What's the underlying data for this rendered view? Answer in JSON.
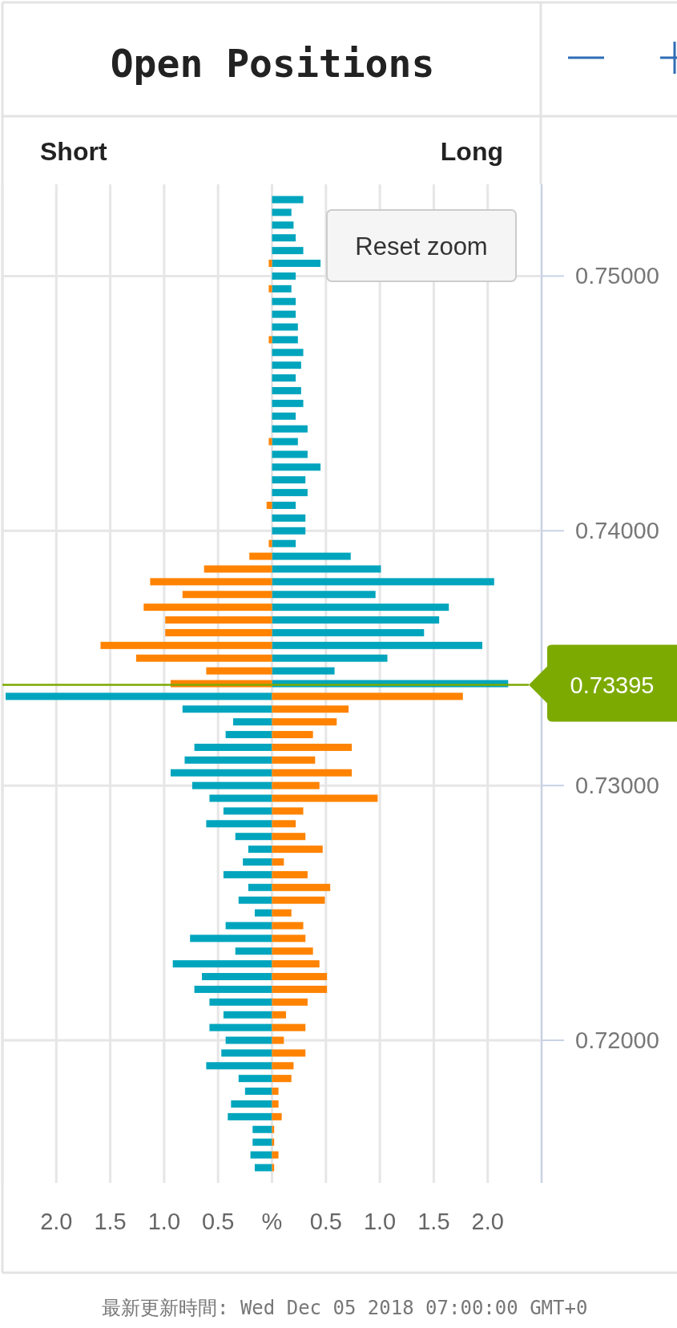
{
  "chart_data": {
    "type": "bar",
    "orientation": "horizontal",
    "stacked": true,
    "title": "Open Positions",
    "x": [
      0.753,
      0.7525,
      0.752,
      0.7515,
      0.751,
      0.7505,
      0.75,
      0.7495,
      0.749,
      0.7485,
      0.748,
      0.7475,
      0.747,
      0.7465,
      0.746,
      0.7455,
      0.745,
      0.7445,
      0.744,
      0.7435,
      0.743,
      0.7425,
      0.742,
      0.7415,
      0.741,
      0.7405,
      0.74,
      0.7395,
      0.739,
      0.7385,
      0.738,
      0.7375,
      0.737,
      0.7365,
      0.736,
      0.7355,
      0.735,
      0.7345,
      0.734,
      0.7335,
      0.733,
      0.7325,
      0.732,
      0.7315,
      0.731,
      0.7305,
      0.73,
      0.7295,
      0.729,
      0.7285,
      0.728,
      0.7275,
      0.727,
      0.7265,
      0.726,
      0.7255,
      0.725,
      0.7245,
      0.724,
      0.7235,
      0.723,
      0.7225,
      0.722,
      0.7215,
      0.721,
      0.7205,
      0.72,
      0.7195,
      0.719,
      0.7185,
      0.718,
      0.7175,
      0.717,
      0.7165,
      0.716,
      0.7155,
      0.715
    ],
    "series": [
      {
        "color": "#00a5bd",
        "values": [
          0.29,
          0.18,
          0.2,
          0.22,
          0.29,
          0.45,
          0.22,
          0.18,
          0.22,
          0.22,
          0.24,
          0.24,
          0.29,
          0.27,
          0.22,
          0.27,
          0.29,
          0.22,
          0.33,
          0.24,
          0.33,
          0.45,
          0.31,
          0.33,
          0.22,
          0.31,
          0.31,
          0.22,
          0.73,
          1.01,
          2.06,
          0.96,
          1.64,
          1.55,
          1.41,
          1.95,
          1.07,
          0.58,
          2.19,
          -2.47,
          -0.83,
          -0.36,
          -0.43,
          -0.72,
          -0.81,
          -0.94,
          -0.74,
          -0.58,
          -0.45,
          -0.61,
          -0.34,
          -0.22,
          -0.27,
          -0.45,
          -0.22,
          -0.31,
          -0.16,
          -0.43,
          -0.76,
          -0.34,
          -0.92,
          -0.65,
          -0.72,
          -0.58,
          -0.45,
          -0.58,
          -0.43,
          -0.47,
          -0.61,
          -0.31,
          -0.25,
          -0.38,
          -0.41,
          -0.18,
          -0.18,
          -0.2,
          -0.16
        ]
      },
      {
        "color": "#ff8300",
        "values": [
          null,
          null,
          null,
          null,
          null,
          -0.03,
          null,
          -0.03,
          null,
          null,
          null,
          -0.03,
          null,
          null,
          null,
          null,
          null,
          null,
          null,
          -0.03,
          null,
          null,
          null,
          null,
          -0.05,
          null,
          null,
          -0.03,
          -0.21,
          -0.63,
          -1.13,
          -0.83,
          -1.19,
          -0.99,
          -0.99,
          -1.59,
          -1.26,
          -0.61,
          -0.94,
          1.77,
          0.71,
          0.6,
          0.38,
          0.74,
          0.4,
          0.74,
          0.44,
          0.98,
          0.29,
          0.22,
          0.31,
          0.47,
          0.11,
          0.33,
          0.54,
          0.49,
          0.18,
          0.29,
          0.31,
          0.38,
          0.44,
          0.51,
          0.51,
          0.33,
          0.13,
          0.31,
          0.11,
          0.31,
          0.2,
          0.18,
          0.06,
          0.06,
          0.09,
          0.02,
          0.02,
          0.06,
          0.02
        ]
      }
    ],
    "xlim": [
      -2.5,
      2.5
    ],
    "xticks": [
      {
        "value": -2.5,
        "label": null
      },
      {
        "value": -2,
        "label": "2.0"
      },
      {
        "value": -1.5,
        "label": "1.5"
      },
      {
        "value": -1,
        "label": "1.0"
      },
      {
        "value": -0.5,
        "label": "0.5"
      },
      {
        "value": 0,
        "label": "%"
      },
      {
        "value": 0.5,
        "label": "0.5"
      },
      {
        "value": 1,
        "label": "1.0"
      },
      {
        "value": 1.5,
        "label": "1.5"
      },
      {
        "value": 2,
        "label": "2.0"
      },
      {
        "value": 2.5,
        "label": null
      }
    ],
    "ylim": [
      0.7144,
      0.7536
    ],
    "yticks": [
      {
        "value": 0.72,
        "label": "0.72000"
      },
      {
        "value": 0.73,
        "label": "0.73000"
      },
      {
        "value": 0.74,
        "label": "0.74000"
      },
      {
        "value": 0.75,
        "label": "0.75000"
      }
    ],
    "grid": true,
    "ref_lines": [
      {
        "axis": "y",
        "value": 0.73395,
        "label": "0.73395",
        "color": "#7caa00"
      }
    ],
    "annotations": [
      "Short",
      "Long",
      "Reset zoom",
      "最新更新時間: Wed Dec 05 2018 07:00:00 GMT+0"
    ]
  }
}
